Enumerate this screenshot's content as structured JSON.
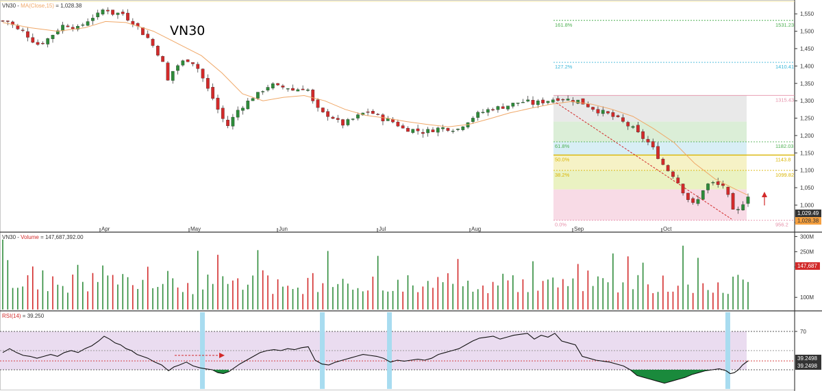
{
  "colors": {
    "up": "#2e8b3a",
    "down": "#d22a2a",
    "ma": "#f0a868",
    "chart_title": "#6aa84f",
    "fib_green": "#4caf50",
    "fib_cyan": "#38b6d8",
    "fib_yellow": "#d9b400",
    "fib_pink": "#e58fa8",
    "rsi_band": "#eadcf0",
    "rsi_fill": "#1a8a3c",
    "highlight": "#a8dcf0",
    "price_tag": "#333333",
    "ma_tag": "#f5a040"
  },
  "main_panel": {
    "header": "VN30 - MA(Close,15) = 1,028.38",
    "header_symbol": "VN30",
    "header_ma": "MA(Close,15)",
    "header_value": "= 1,028.38",
    "chart_title": "VN30",
    "price_tag": "1,029.49",
    "ma_tag": "1,028.38"
  },
  "volume_panel": {
    "header_symbol": "VN30",
    "header_label": "Volume",
    "header_value": "= 147,687,392.00",
    "tag": "147,687"
  },
  "rsi_panel": {
    "header_label": "RSI(14)",
    "header_value": "= 39.250",
    "tag1": "39.2498",
    "tag2": "39.2498"
  },
  "chart_data": [
    {
      "type": "candlestick",
      "title": "VN30",
      "legend": "MA(Close,15) = 1,028.38",
      "x_tick_labels": [
        "Apr",
        "May",
        "Jun",
        "Jul",
        "Aug",
        "Sep",
        "Oct"
      ],
      "y_tick_labels": [
        "1,550",
        "1,500",
        "1,450",
        "1,400",
        "1,350",
        "1,300",
        "1,250",
        "1,200",
        "1,150",
        "1,100",
        "1,050",
        "1,000",
        "950"
      ],
      "ylim": [
        930,
        1580
      ],
      "last_close": 1029.49,
      "ma15_last": 1028.38,
      "fibonacci": [
        {
          "level": "0.0%",
          "price": 956.2,
          "label": "956.2"
        },
        {
          "level": "38.2%",
          "price": 1099.82,
          "label": "1099.82"
        },
        {
          "level": "50.0%",
          "price": 1143.8,
          "label": "1143.8"
        },
        {
          "level": "61.8%",
          "price": 1182.03,
          "label": "1182.03"
        },
        {
          "level": "100.0%",
          "price": 1315.43,
          "label": "1315.43"
        },
        {
          "level": "127.2%",
          "price": 1410.41,
          "label": "1410.41"
        },
        {
          "level": "161.8%",
          "price": 1531.23,
          "label": "1531.23"
        }
      ],
      "close_path": [
        [
          0,
          1530
        ],
        [
          10,
          1528
        ],
        [
          20,
          1505
        ],
        [
          30,
          1500
        ],
        [
          40,
          1480
        ],
        [
          50,
          1462
        ],
        [
          60,
          1470
        ],
        [
          70,
          1485
        ],
        [
          80,
          1505
        ],
        [
          90,
          1520
        ],
        [
          100,
          1515
        ],
        [
          110,
          1508
        ],
        [
          120,
          1525
        ],
        [
          130,
          1540
        ],
        [
          140,
          1548
        ],
        [
          148,
          1565
        ],
        [
          156,
          1560
        ],
        [
          164,
          1545
        ],
        [
          172,
          1558
        ],
        [
          180,
          1540
        ],
        [
          188,
          1530
        ],
        [
          196,
          1515
        ],
        [
          204,
          1495
        ],
        [
          212,
          1480
        ],
        [
          222,
          1450
        ],
        [
          232,
          1420
        ],
        [
          242,
          1350
        ],
        [
          250,
          1395
        ],
        [
          258,
          1405
        ],
        [
          268,
          1420
        ],
        [
          278,
          1410
        ],
        [
          288,
          1385
        ],
        [
          296,
          1345
        ],
        [
          306,
          1310
        ],
        [
          314,
          1275
        ],
        [
          322,
          1245
        ],
        [
          330,
          1225
        ],
        [
          338,
          1260
        ],
        [
          346,
          1280
        ],
        [
          354,
          1290
        ],
        [
          364,
          1310
        ],
        [
          374,
          1320
        ],
        [
          384,
          1340
        ],
        [
          394,
          1345
        ],
        [
          404,
          1338
        ],
        [
          414,
          1340
        ],
        [
          424,
          1330
        ],
        [
          434,
          1335
        ],
        [
          444,
          1338
        ],
        [
          454,
          1290
        ],
        [
          464,
          1265
        ],
        [
          474,
          1260
        ],
        [
          484,
          1250
        ],
        [
          494,
          1230
        ],
        [
          504,
          1240
        ],
        [
          514,
          1250
        ],
        [
          524,
          1262
        ],
        [
          534,
          1270
        ],
        [
          544,
          1260
        ],
        [
          554,
          1248
        ],
        [
          564,
          1245
        ],
        [
          574,
          1235
        ],
        [
          584,
          1220
        ],
        [
          594,
          1218
        ],
        [
          604,
          1215
        ],
        [
          614,
          1210
        ],
        [
          624,
          1215
        ],
        [
          634,
          1220
        ],
        [
          644,
          1222
        ],
        [
          654,
          1220
        ],
        [
          664,
          1218
        ],
        [
          674,
          1235
        ],
        [
          684,
          1250
        ],
        [
          694,
          1262
        ],
        [
          704,
          1270
        ],
        [
          714,
          1278
        ],
        [
          724,
          1280
        ],
        [
          734,
          1285
        ],
        [
          744,
          1290
        ],
        [
          754,
          1296
        ],
        [
          764,
          1298
        ],
        [
          774,
          1292
        ],
        [
          784,
          1296
        ],
        [
          794,
          1300
        ],
        [
          804,
          1305
        ],
        [
          812,
          1308
        ],
        [
          820,
          1305
        ],
        [
          830,
          1302
        ],
        [
          840,
          1300
        ],
        [
          850,
          1290
        ],
        [
          860,
          1280
        ],
        [
          870,
          1270
        ],
        [
          880,
          1265
        ],
        [
          890,
          1255
        ],
        [
          900,
          1245
        ],
        [
          910,
          1232
        ],
        [
          920,
          1220
        ],
        [
          930,
          1200
        ],
        [
          940,
          1185
        ],
        [
          950,
          1160
        ],
        [
          958,
          1135
        ],
        [
          966,
          1110
        ],
        [
          974,
          1095
        ],
        [
          982,
          1080
        ],
        [
          990,
          1050
        ],
        [
          998,
          1025
        ],
        [
          1006,
          1000
        ],
        [
          1014,
          1010
        ],
        [
          1022,
          1045
        ],
        [
          1030,
          1060
        ],
        [
          1038,
          1063
        ],
        [
          1046,
          1056
        ],
        [
          1054,
          1058
        ],
        [
          1062,
          1000
        ],
        [
          1068,
          972
        ],
        [
          1074,
          985
        ],
        [
          1080,
          1005
        ],
        [
          1088,
          1029
        ]
      ],
      "ma15_path": [
        [
          0,
          1525
        ],
        [
          40,
          1510
        ],
        [
          80,
          1500
        ],
        [
          120,
          1510
        ],
        [
          150,
          1528
        ],
        [
          180,
          1525
        ],
        [
          220,
          1500
        ],
        [
          260,
          1460
        ],
        [
          290,
          1430
        ],
        [
          320,
          1380
        ],
        [
          350,
          1320
        ],
        [
          380,
          1300
        ],
        [
          410,
          1310
        ],
        [
          440,
          1315
        ],
        [
          470,
          1300
        ],
        [
          500,
          1275
        ],
        [
          530,
          1258
        ],
        [
          560,
          1250
        ],
        [
          590,
          1240
        ],
        [
          620,
          1232
        ],
        [
          650,
          1225
        ],
        [
          680,
          1232
        ],
        [
          710,
          1248
        ],
        [
          740,
          1265
        ],
        [
          770,
          1278
        ],
        [
          800,
          1290
        ],
        [
          830,
          1298
        ],
        [
          860,
          1290
        ],
        [
          890,
          1275
        ],
        [
          920,
          1255
        ],
        [
          950,
          1220
        ],
        [
          980,
          1180
        ],
        [
          1010,
          1120
        ],
        [
          1040,
          1075
        ],
        [
          1070,
          1045
        ],
        [
          1088,
          1028
        ]
      ]
    },
    {
      "type": "bar",
      "title": "VN30 - Volume = 147,687,392.00",
      "y_tick_labels": [
        "300M",
        "250M",
        "200M",
        "100M"
      ],
      "ylim": [
        60,
        310
      ],
      "last_value": 147.687
    },
    {
      "type": "line",
      "title": "RSI(14) = 39.250",
      "y_tick_labels": [
        "70"
      ],
      "ylim": [
        10,
        90
      ],
      "band": [
        30,
        70
      ],
      "last_value": 39.25,
      "values": [
        [
          0,
          48
        ],
        [
          10,
          52
        ],
        [
          20,
          48
        ],
        [
          30,
          45
        ],
        [
          40,
          44
        ],
        [
          50,
          42
        ],
        [
          60,
          44
        ],
        [
          70,
          46
        ],
        [
          80,
          44
        ],
        [
          90,
          48
        ],
        [
          100,
          50
        ],
        [
          110,
          48
        ],
        [
          120,
          52
        ],
        [
          130,
          55
        ],
        [
          140,
          60
        ],
        [
          148,
          65
        ],
        [
          156,
          62
        ],
        [
          164,
          58
        ],
        [
          172,
          56
        ],
        [
          180,
          52
        ],
        [
          188,
          50
        ],
        [
          196,
          46
        ],
        [
          204,
          44
        ],
        [
          212,
          42
        ],
        [
          222,
          38
        ],
        [
          232,
          35
        ],
        [
          242,
          29
        ],
        [
          250,
          33
        ],
        [
          258,
          35
        ],
        [
          268,
          38
        ],
        [
          278,
          34
        ],
        [
          288,
          32
        ],
        [
          296,
          31
        ],
        [
          306,
          30
        ],
        [
          314,
          27
        ],
        [
          322,
          26
        ],
        [
          330,
          28
        ],
        [
          338,
          32
        ],
        [
          346,
          36
        ],
        [
          356,
          40
        ],
        [
          366,
          44
        ],
        [
          376,
          48
        ],
        [
          386,
          50
        ],
        [
          396,
          51
        ],
        [
          406,
          50
        ],
        [
          416,
          52
        ],
        [
          426,
          51
        ],
        [
          436,
          53
        ],
        [
          446,
          54
        ],
        [
          456,
          40
        ],
        [
          466,
          36
        ],
        [
          476,
          35
        ],
        [
          486,
          38
        ],
        [
          496,
          40
        ],
        [
          506,
          42
        ],
        [
          516,
          44
        ],
        [
          526,
          46
        ],
        [
          536,
          45
        ],
        [
          546,
          44
        ],
        [
          556,
          42
        ],
        [
          566,
          38
        ],
        [
          576,
          40
        ],
        [
          586,
          39
        ],
        [
          596,
          40
        ],
        [
          606,
          41
        ],
        [
          616,
          40
        ],
        [
          626,
          42
        ],
        [
          636,
          46
        ],
        [
          646,
          48
        ],
        [
          656,
          50
        ],
        [
          666,
          52
        ],
        [
          676,
          56
        ],
        [
          686,
          60
        ],
        [
          696,
          63
        ],
        [
          706,
          64
        ],
        [
          716,
          65
        ],
        [
          726,
          62
        ],
        [
          736,
          64
        ],
        [
          746,
          66
        ],
        [
          756,
          67
        ],
        [
          766,
          68
        ],
        [
          776,
          62
        ],
        [
          786,
          66
        ],
        [
          796,
          64
        ],
        [
          806,
          68
        ],
        [
          816,
          60
        ],
        [
          826,
          58
        ],
        [
          836,
          56
        ],
        [
          846,
          44
        ],
        [
          856,
          42
        ],
        [
          866,
          40
        ],
        [
          876,
          39
        ],
        [
          886,
          38
        ],
        [
          896,
          36
        ],
        [
          906,
          34
        ],
        [
          916,
          30
        ],
        [
          926,
          24
        ],
        [
          936,
          22
        ],
        [
          946,
          20
        ],
        [
          956,
          18
        ],
        [
          966,
          16
        ],
        [
          976,
          18
        ],
        [
          986,
          20
        ],
        [
          996,
          22
        ],
        [
          1006,
          25
        ],
        [
          1016,
          27
        ],
        [
          1026,
          29
        ],
        [
          1036,
          30
        ],
        [
          1046,
          31
        ],
        [
          1056,
          29
        ],
        [
          1062,
          26
        ],
        [
          1068,
          27
        ],
        [
          1074,
          30
        ],
        [
          1080,
          35
        ],
        [
          1088,
          39.25
        ]
      ]
    }
  ]
}
